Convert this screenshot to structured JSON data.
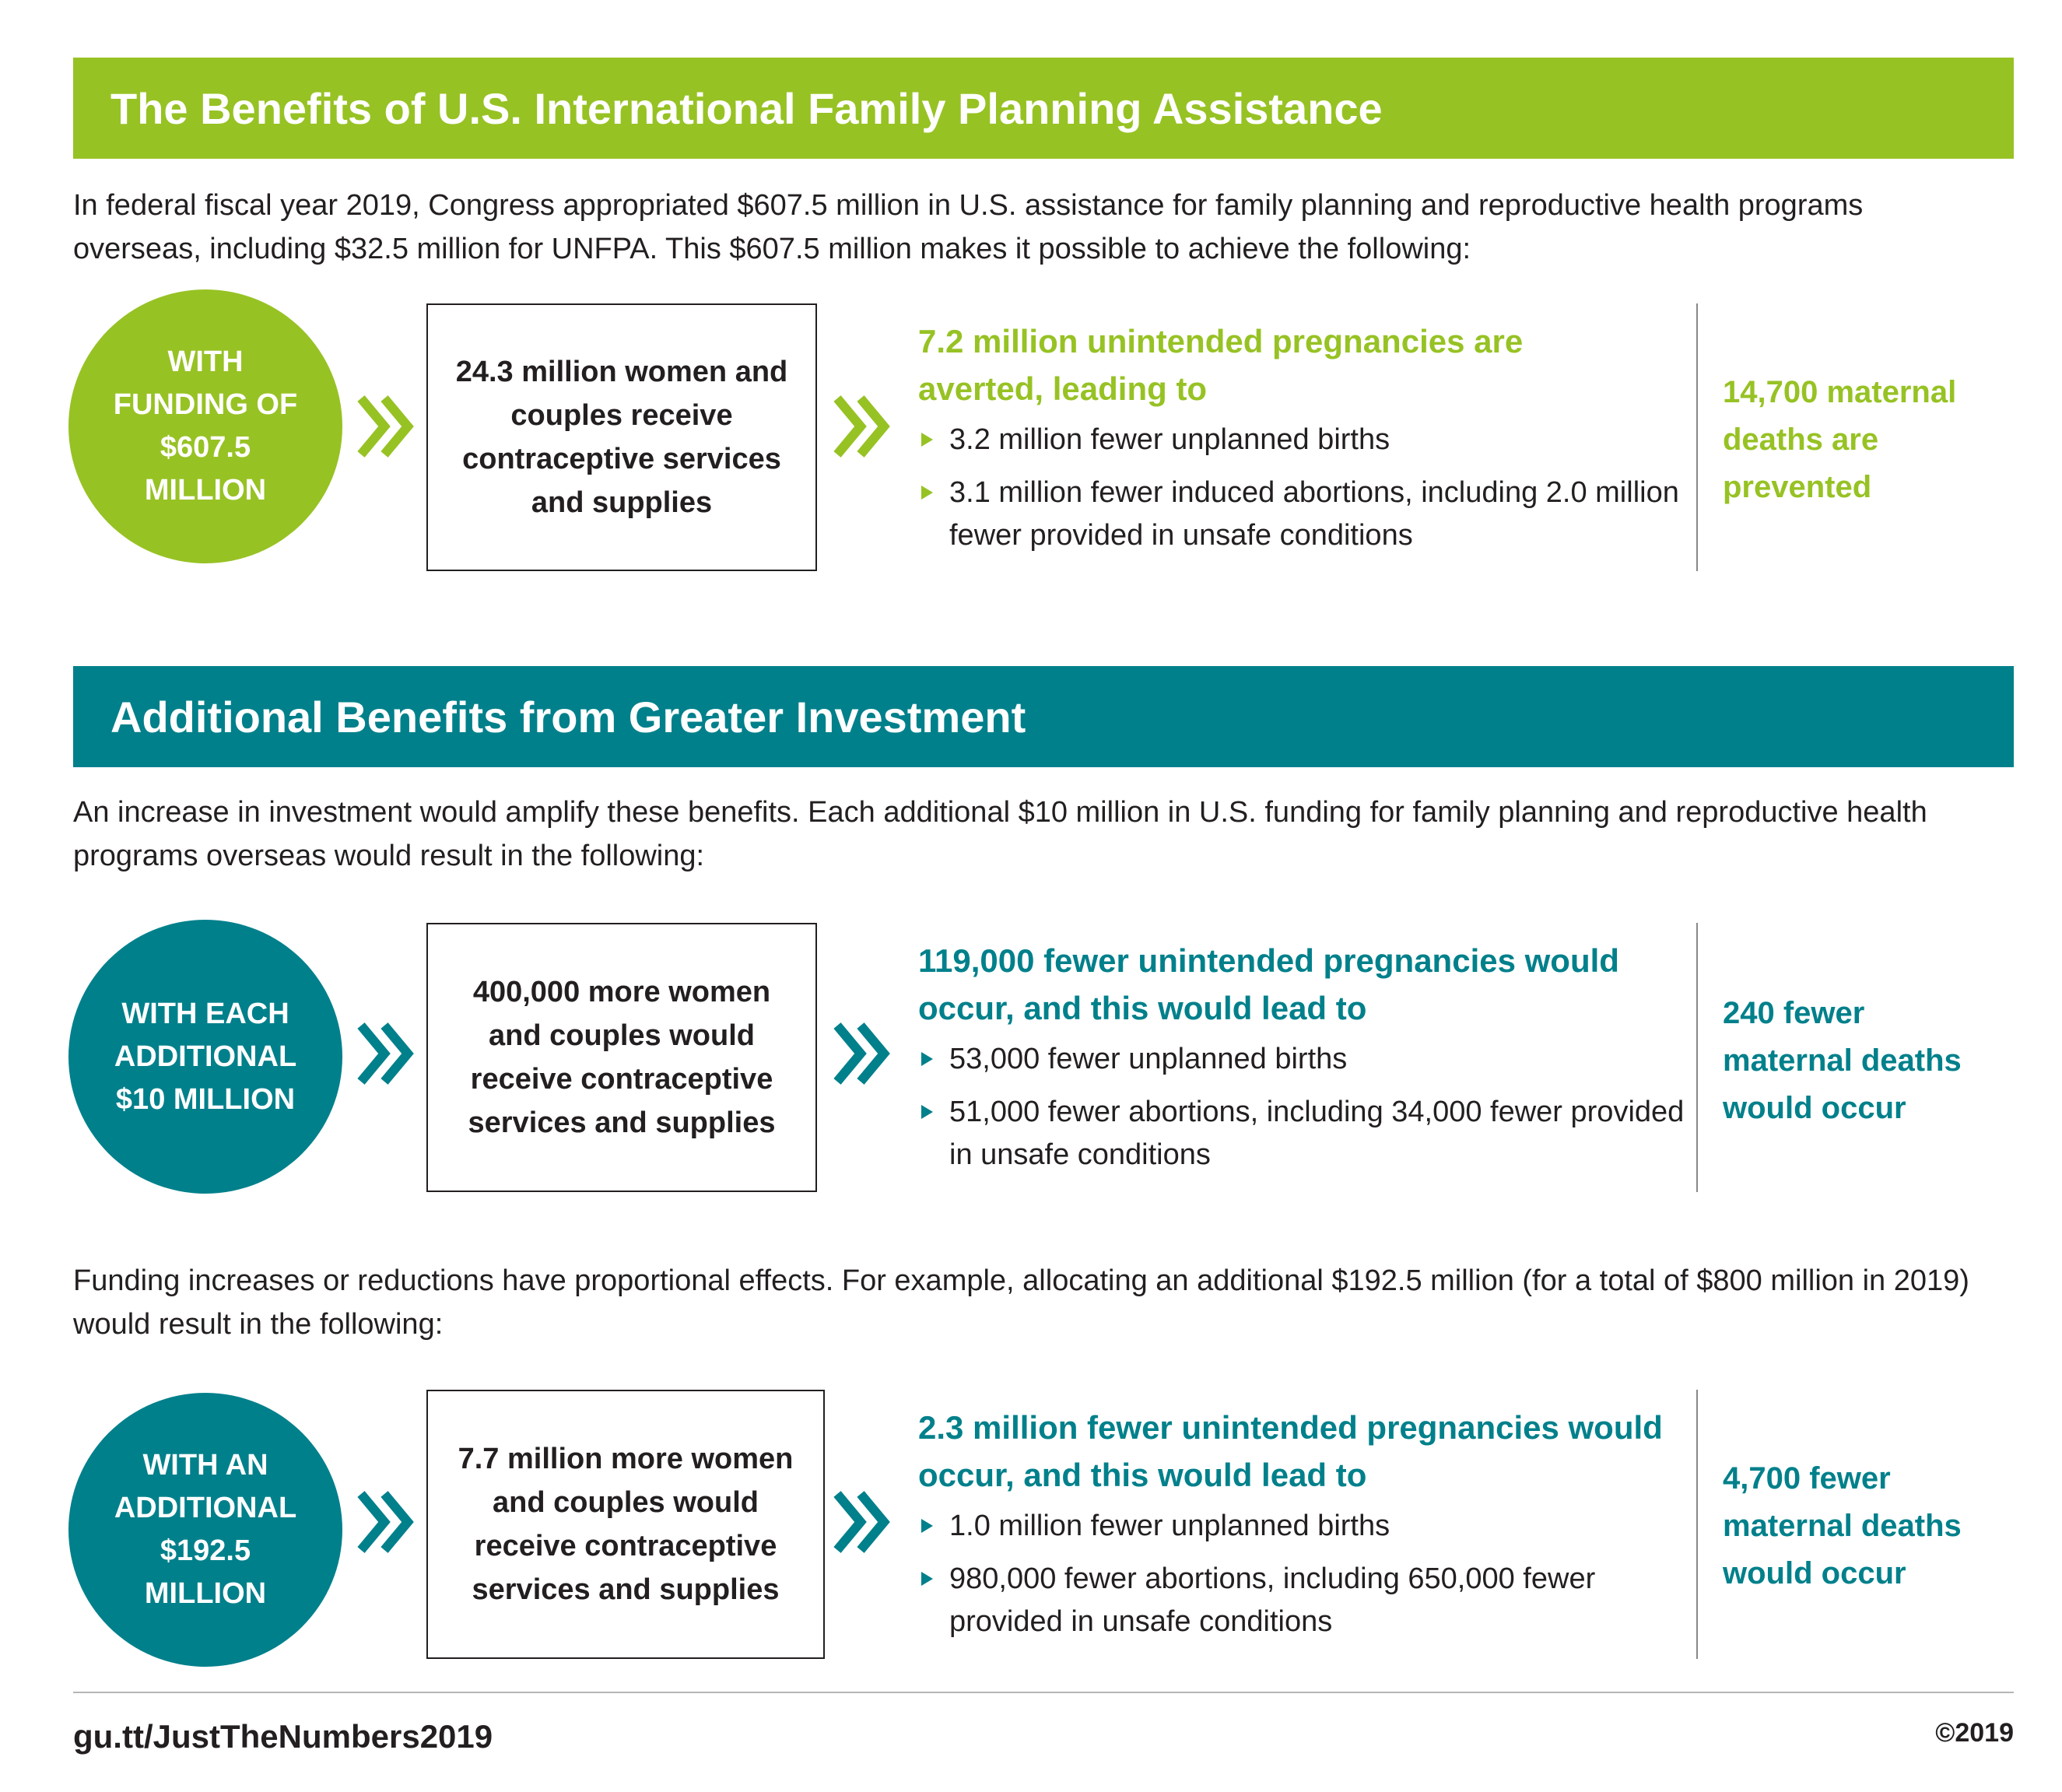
{
  "colors": {
    "green": "#97c224",
    "teal": "#00808b"
  },
  "section1": {
    "title": "The Benefits of U.S. International Family Planning Assistance",
    "intro": "In federal fiscal year 2019, Congress appropriated $607.5 million in U.S. assistance for family planning and reproductive health programs overseas, including $32.5 million for UNFPA. This $607.5 million makes it possible to achieve the following:",
    "circle": "WITH FUNDING OF $607.5 MILLION",
    "box": "24.3 million women and couples receive contraceptive services and supplies",
    "lead": "7.2 million unintended pregnancies are averted, leading to",
    "bullets": [
      "3.2 million fewer unplanned births",
      "3.1 million fewer induced abortions, including 2.0 million fewer provided in unsafe conditions"
    ],
    "side": "14,700 maternal deaths are prevented"
  },
  "section2": {
    "title": "Additional Benefits from Greater Investment",
    "intro": "An increase in investment would amplify these benefits. Each additional $10 million in U.S. funding for family planning and reproductive health programs overseas would result in the following:",
    "row1": {
      "circle": "WITH EACH ADDITIONAL $10 MILLION",
      "box": "400,000 more women and couples would receive contraceptive services and supplies",
      "lead": "119,000 fewer unintended pregnancies would occur, and this would lead to",
      "bullets": [
        "53,000 fewer unplanned births",
        "51,000 fewer abortions, including 34,000 fewer provided in unsafe conditions"
      ],
      "side": "240 fewer maternal deaths would occur"
    },
    "intro2": "Funding increases or reductions have proportional effects. For example, allocating an additional $192.5 million (for a total of $800 million in 2019) would result in the following:",
    "row2": {
      "circle": "WITH AN ADDITIONAL $192.5 MILLION",
      "box": "7.7 million more women and couples would receive contraceptive services and supplies",
      "lead": "2.3 million fewer unintended pregnancies would occur, and this would lead to",
      "bullets": [
        "1.0 million fewer unplanned births",
        "980,000 fewer abortions, including 650,000 fewer provided in unsafe conditions"
      ],
      "side": "4,700 fewer maternal deaths would occur"
    }
  },
  "footer": {
    "link": "gu.tt/JustTheNumbers2019",
    "copyright": "©2019"
  }
}
